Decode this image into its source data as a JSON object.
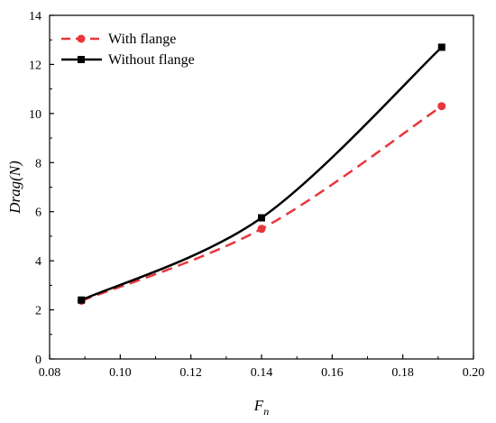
{
  "chart_data": {
    "type": "line",
    "xlabel": "F",
    "xlabel_sub": "n",
    "ylabel": "Drag(N)",
    "xlim": [
      0.08,
      0.2
    ],
    "ylim": [
      0,
      14
    ],
    "xticks": [
      "0.08",
      "0.10",
      "0.12",
      "0.14",
      "0.16",
      "0.18",
      "0.20"
    ],
    "yticks": [
      "0",
      "2",
      "4",
      "6",
      "8",
      "10",
      "12",
      "14"
    ],
    "legend_position": "top-left",
    "grid": false,
    "series": [
      {
        "name": "With flange",
        "color": "#e8363a",
        "line_style": "dashed",
        "marker": "circle",
        "x": [
          0.089,
          0.14,
          0.191
        ],
        "y": [
          2.37,
          5.3,
          10.3
        ]
      },
      {
        "name": "Without flange",
        "color": "#000000",
        "line_style": "solid",
        "marker": "square",
        "x": [
          0.089,
          0.14,
          0.191
        ],
        "y": [
          2.4,
          5.75,
          12.7
        ]
      }
    ]
  }
}
